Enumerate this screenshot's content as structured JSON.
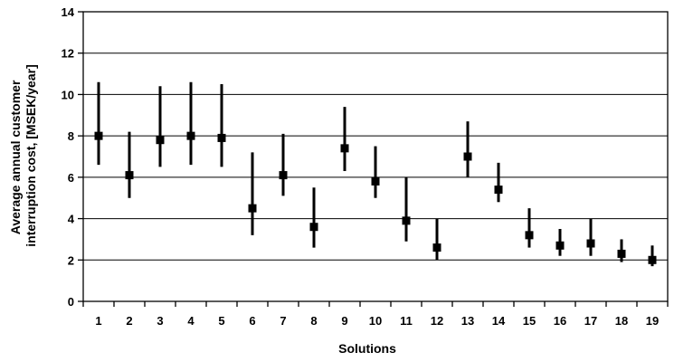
{
  "chart_data": {
    "type": "scatter",
    "title": "",
    "xlabel": "Solutions",
    "ylabel_lines": [
      "Average annual customer",
      "interruption cost, [MSEK/year]"
    ],
    "categories": [
      "1",
      "2",
      "3",
      "4",
      "5",
      "6",
      "7",
      "8",
      "9",
      "10",
      "11",
      "12",
      "13",
      "14",
      "15",
      "16",
      "17",
      "18",
      "19"
    ],
    "ylim": [
      0,
      14
    ],
    "yticks": [
      "0",
      "2",
      "4",
      "6",
      "8",
      "10",
      "12",
      "14"
    ],
    "grid": true,
    "series": [
      {
        "values": [
          8.0,
          6.1,
          7.8,
          8.0,
          7.9,
          4.5,
          6.1,
          3.6,
          7.4,
          5.8,
          3.9,
          2.6,
          7.0,
          5.4,
          3.2,
          2.7,
          2.8,
          2.3,
          2.0
        ],
        "lower": [
          6.6,
          5.0,
          6.5,
          6.6,
          6.5,
          3.2,
          5.1,
          2.6,
          6.3,
          5.0,
          2.9,
          2.0,
          6.0,
          4.8,
          2.6,
          2.2,
          2.2,
          1.9,
          1.7
        ],
        "upper": [
          10.6,
          8.2,
          10.4,
          10.6,
          10.5,
          7.2,
          8.1,
          5.5,
          9.4,
          7.5,
          6.0,
          4.0,
          8.7,
          6.7,
          4.5,
          3.5,
          4.0,
          3.0,
          2.7
        ],
        "marker_color": "#000000",
        "errorbar_color": "#000000"
      }
    ]
  }
}
